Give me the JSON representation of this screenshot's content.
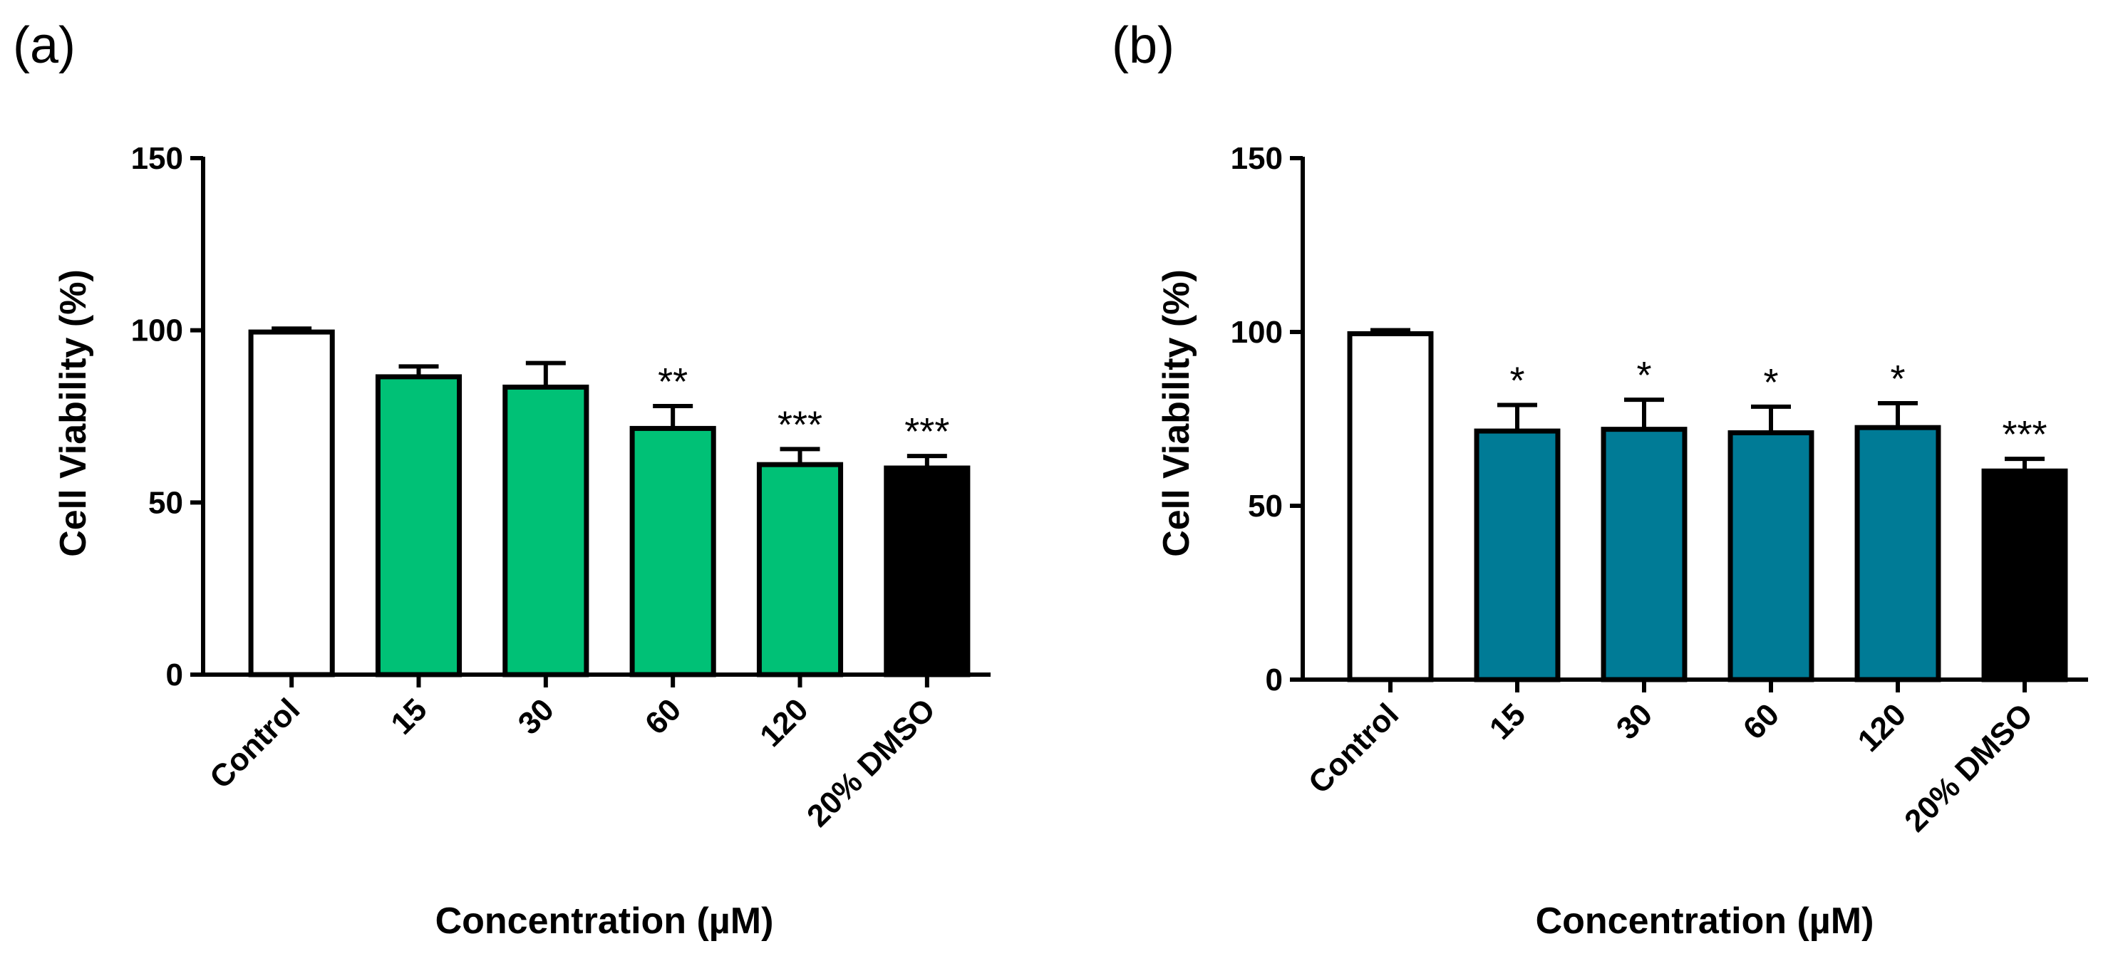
{
  "chart_data": [
    {
      "type": "bar",
      "panel_label": "(a)",
      "categories": [
        "Control",
        "15",
        "30",
        "60",
        "120",
        "20%  DMSO"
      ],
      "values": [
        99.5,
        86.5,
        83.5,
        71.5,
        61,
        60
      ],
      "error_upper": [
        1,
        3,
        7,
        6.5,
        4.5,
        3.5
      ],
      "significance": [
        "",
        "",
        "",
        "**",
        "***",
        "***"
      ],
      "bar_colors": [
        "#ffffff",
        "#00c176",
        "#00c176",
        "#00c176",
        "#00c176",
        "#000000"
      ],
      "xlabel": "Concentration (µM)",
      "ylabel": "Cell Viability (%)",
      "ylim": [
        0,
        150
      ],
      "yticks": [
        "0",
        "50",
        "100",
        "150"
      ],
      "ytick_values": [
        0,
        50,
        100,
        150
      ]
    },
    {
      "type": "bar",
      "panel_label": "(b)",
      "categories": [
        "Control",
        "15",
        "30",
        "60",
        "120",
        "20% DMSO"
      ],
      "values": [
        99.5,
        71.5,
        72,
        71,
        72.5,
        60
      ],
      "error_upper": [
        1,
        7.5,
        8.5,
        7.5,
        7,
        3.5
      ],
      "significance": [
        "",
        "*",
        "*",
        "*",
        "*",
        "***"
      ],
      "bar_colors": [
        "#ffffff",
        "#007b96",
        "#007b96",
        "#007b96",
        "#007b96",
        "#000000"
      ],
      "xlabel": "Concentration (µM)",
      "ylabel": "Cell Viability (%)",
      "ylim": [
        0,
        150
      ],
      "yticks": [
        "0",
        "50",
        "100",
        "150"
      ],
      "ytick_values": [
        0,
        50,
        100,
        150
      ]
    }
  ]
}
